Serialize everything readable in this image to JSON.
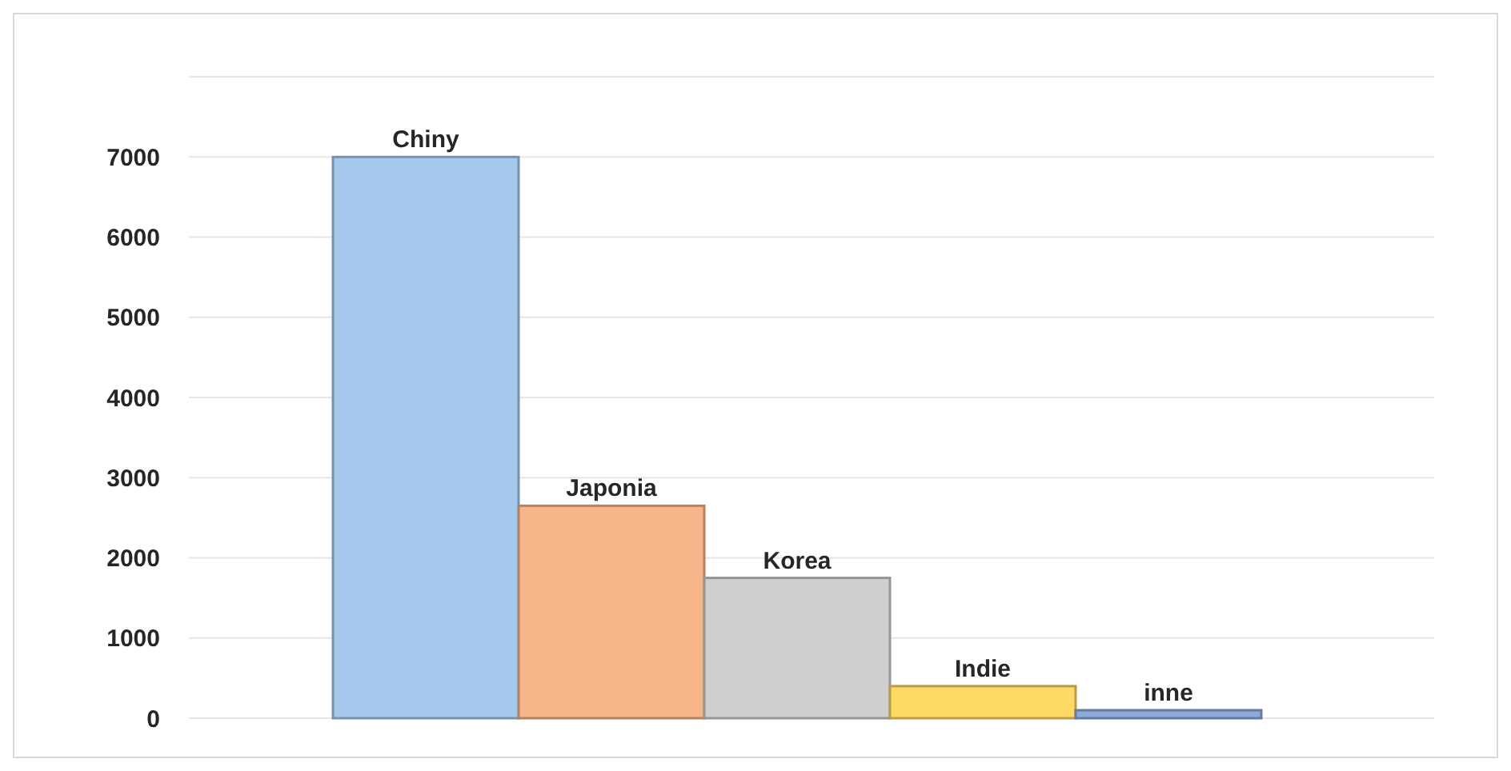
{
  "chart_data": {
    "type": "bar",
    "categories": [
      "Chiny",
      "Japonia",
      "Korea",
      "Indie",
      "inne"
    ],
    "values": [
      7000,
      2650,
      1750,
      400,
      100
    ],
    "colors": [
      "#a5c9ed",
      "#f7b489",
      "#cfcfcf",
      "#ffd966",
      "#8eaadb"
    ],
    "ylim": [
      0,
      8000
    ],
    "yticks": [
      0,
      1000,
      2000,
      3000,
      4000,
      5000,
      6000,
      7000,
      {
        "value": 8000,
        "label": null
      }
    ],
    "grid": "y",
    "tick_labels": "y"
  }
}
